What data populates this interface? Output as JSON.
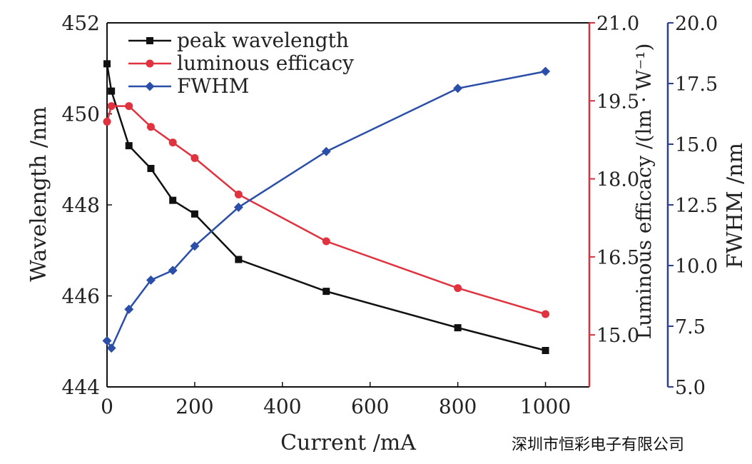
{
  "watermark": "深圳市恒彩电子有限公司",
  "chart_data": {
    "type": "line",
    "x": [
      0,
      10,
      50,
      100,
      150,
      200,
      300,
      500,
      800,
      1000
    ],
    "xlabel": "Current /mA",
    "xlim": [
      0,
      1100
    ],
    "xticks": [
      "0",
      "200",
      "400",
      "600",
      "800",
      "1000"
    ],
    "xtick_values": [
      0,
      200,
      400,
      600,
      800,
      1000
    ],
    "axes": {
      "left": {
        "label": "Wavelength /nm",
        "lim": [
          444,
          452
        ],
        "ticks": [
          "444",
          "446",
          "448",
          "450",
          "452"
        ],
        "tick_values": [
          444,
          446,
          448,
          450,
          452
        ],
        "color": "#111111"
      },
      "right1": {
        "label": "Luminous efficacy /(lm · W⁻¹)",
        "lim": [
          14.0,
          21.0
        ],
        "ticks": [
          "15.0",
          "16.5",
          "18.0",
          "19.5",
          "21.0"
        ],
        "tick_values": [
          15.0,
          16.5,
          18.0,
          19.5,
          21.0
        ],
        "color": "#d9303b"
      },
      "right2": {
        "label": "FWHM /nm",
        "lim": [
          5.0,
          20.0
        ],
        "ticks": [
          "5.0",
          "7.5",
          "10.0",
          "12.5",
          "15.0",
          "17.5",
          "20.0"
        ],
        "tick_values": [
          5.0,
          7.5,
          10.0,
          12.5,
          15.0,
          17.5,
          20.0
        ],
        "color": "#2a3f8f"
      }
    },
    "series": [
      {
        "name": "peak wavelength",
        "axis": "left",
        "color": "#111111",
        "marker": "square",
        "values": [
          451.1,
          450.5,
          449.3,
          448.8,
          448.1,
          447.8,
          446.8,
          446.1,
          445.3,
          444.8
        ]
      },
      {
        "name": "luminous efficacy",
        "axis": "right1",
        "color": "#e0323f",
        "marker": "circle",
        "values": [
          19.1,
          19.4,
          19.4,
          19.0,
          18.7,
          18.4,
          17.7,
          16.8,
          15.9,
          15.4
        ]
      },
      {
        "name": "FWHM",
        "axis": "right2",
        "color": "#2b4fa8",
        "marker": "diamond",
        "values": [
          6.9,
          6.6,
          8.2,
          9.4,
          9.8,
          10.8,
          12.4,
          14.7,
          17.3,
          18.0
        ]
      }
    ],
    "legend": "top-left"
  }
}
